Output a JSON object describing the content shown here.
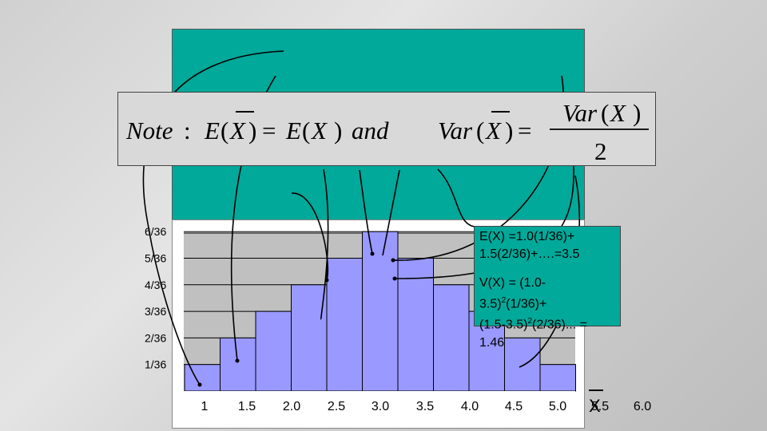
{
  "formula": {
    "note": "Note",
    "colon": ":",
    "E": "E",
    "X": "X",
    "eq": "=",
    "and": "and",
    "Var": "Var",
    "two": "2",
    "lparen": "(",
    "rparen": ")"
  },
  "callout": {
    "line1": "E(X) =1.0(1/36)+",
    "line2": "1.5(2/36)+….=3.5",
    "line3": "V(X) = (1.0-",
    "line4_a": "3.5)",
    "line4_sup": "2",
    "line4_b": "(1/36)+",
    "line5_a": "(1.5-3.5)",
    "line5_sup": "2",
    "line5_b": "(2/36)... =",
    "line6": "1.46"
  },
  "chart_data": {
    "type": "bar",
    "categories": [
      "1",
      "1.5",
      "2.0",
      "2.5",
      "3.0",
      "3.5",
      "4.0",
      "4.5",
      "5.0",
      "5.5",
      "6.0"
    ],
    "values": [
      1,
      2,
      3,
      4,
      5,
      6,
      5,
      4,
      3,
      2,
      1
    ],
    "y_tick_labels": [
      "1/36",
      "2/36",
      "3/36",
      "4/36",
      "5/36",
      "6/36"
    ],
    "y_tick_values": [
      1,
      2,
      3,
      4,
      5,
      6
    ],
    "xlabel": "X",
    "ylim": [
      0,
      7
    ],
    "grid": true,
    "bar_color": "#9999ff"
  }
}
